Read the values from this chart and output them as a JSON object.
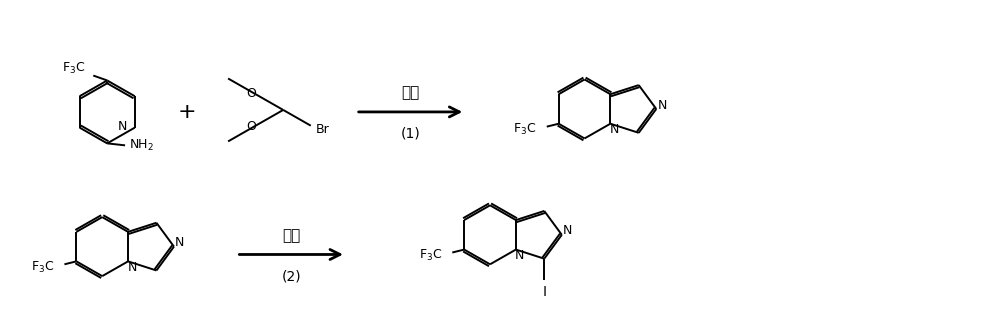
{
  "background_color": "#ffffff",
  "fig_width": 10.0,
  "fig_height": 3.31,
  "dpi": 100,
  "row1_arrow_label": "环合",
  "row1_arrow_sublabel": "(1)",
  "row2_arrow_label": "取代",
  "row2_arrow_sublabel": "(2)",
  "text_color": "#000000",
  "line_color": "#000000"
}
